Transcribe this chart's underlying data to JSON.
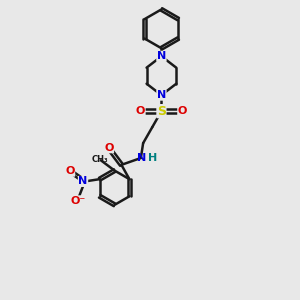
{
  "bg_color": "#e8e8e8",
  "atom_colors": {
    "C": "#1a1a1a",
    "N": "#0000dd",
    "O": "#dd0000",
    "S": "#cccc00",
    "H": "#008080"
  },
  "bond_color": "#1a1a1a",
  "bond_width": 1.8,
  "xlim": [
    0,
    10
  ],
  "ylim": [
    0,
    13
  ]
}
